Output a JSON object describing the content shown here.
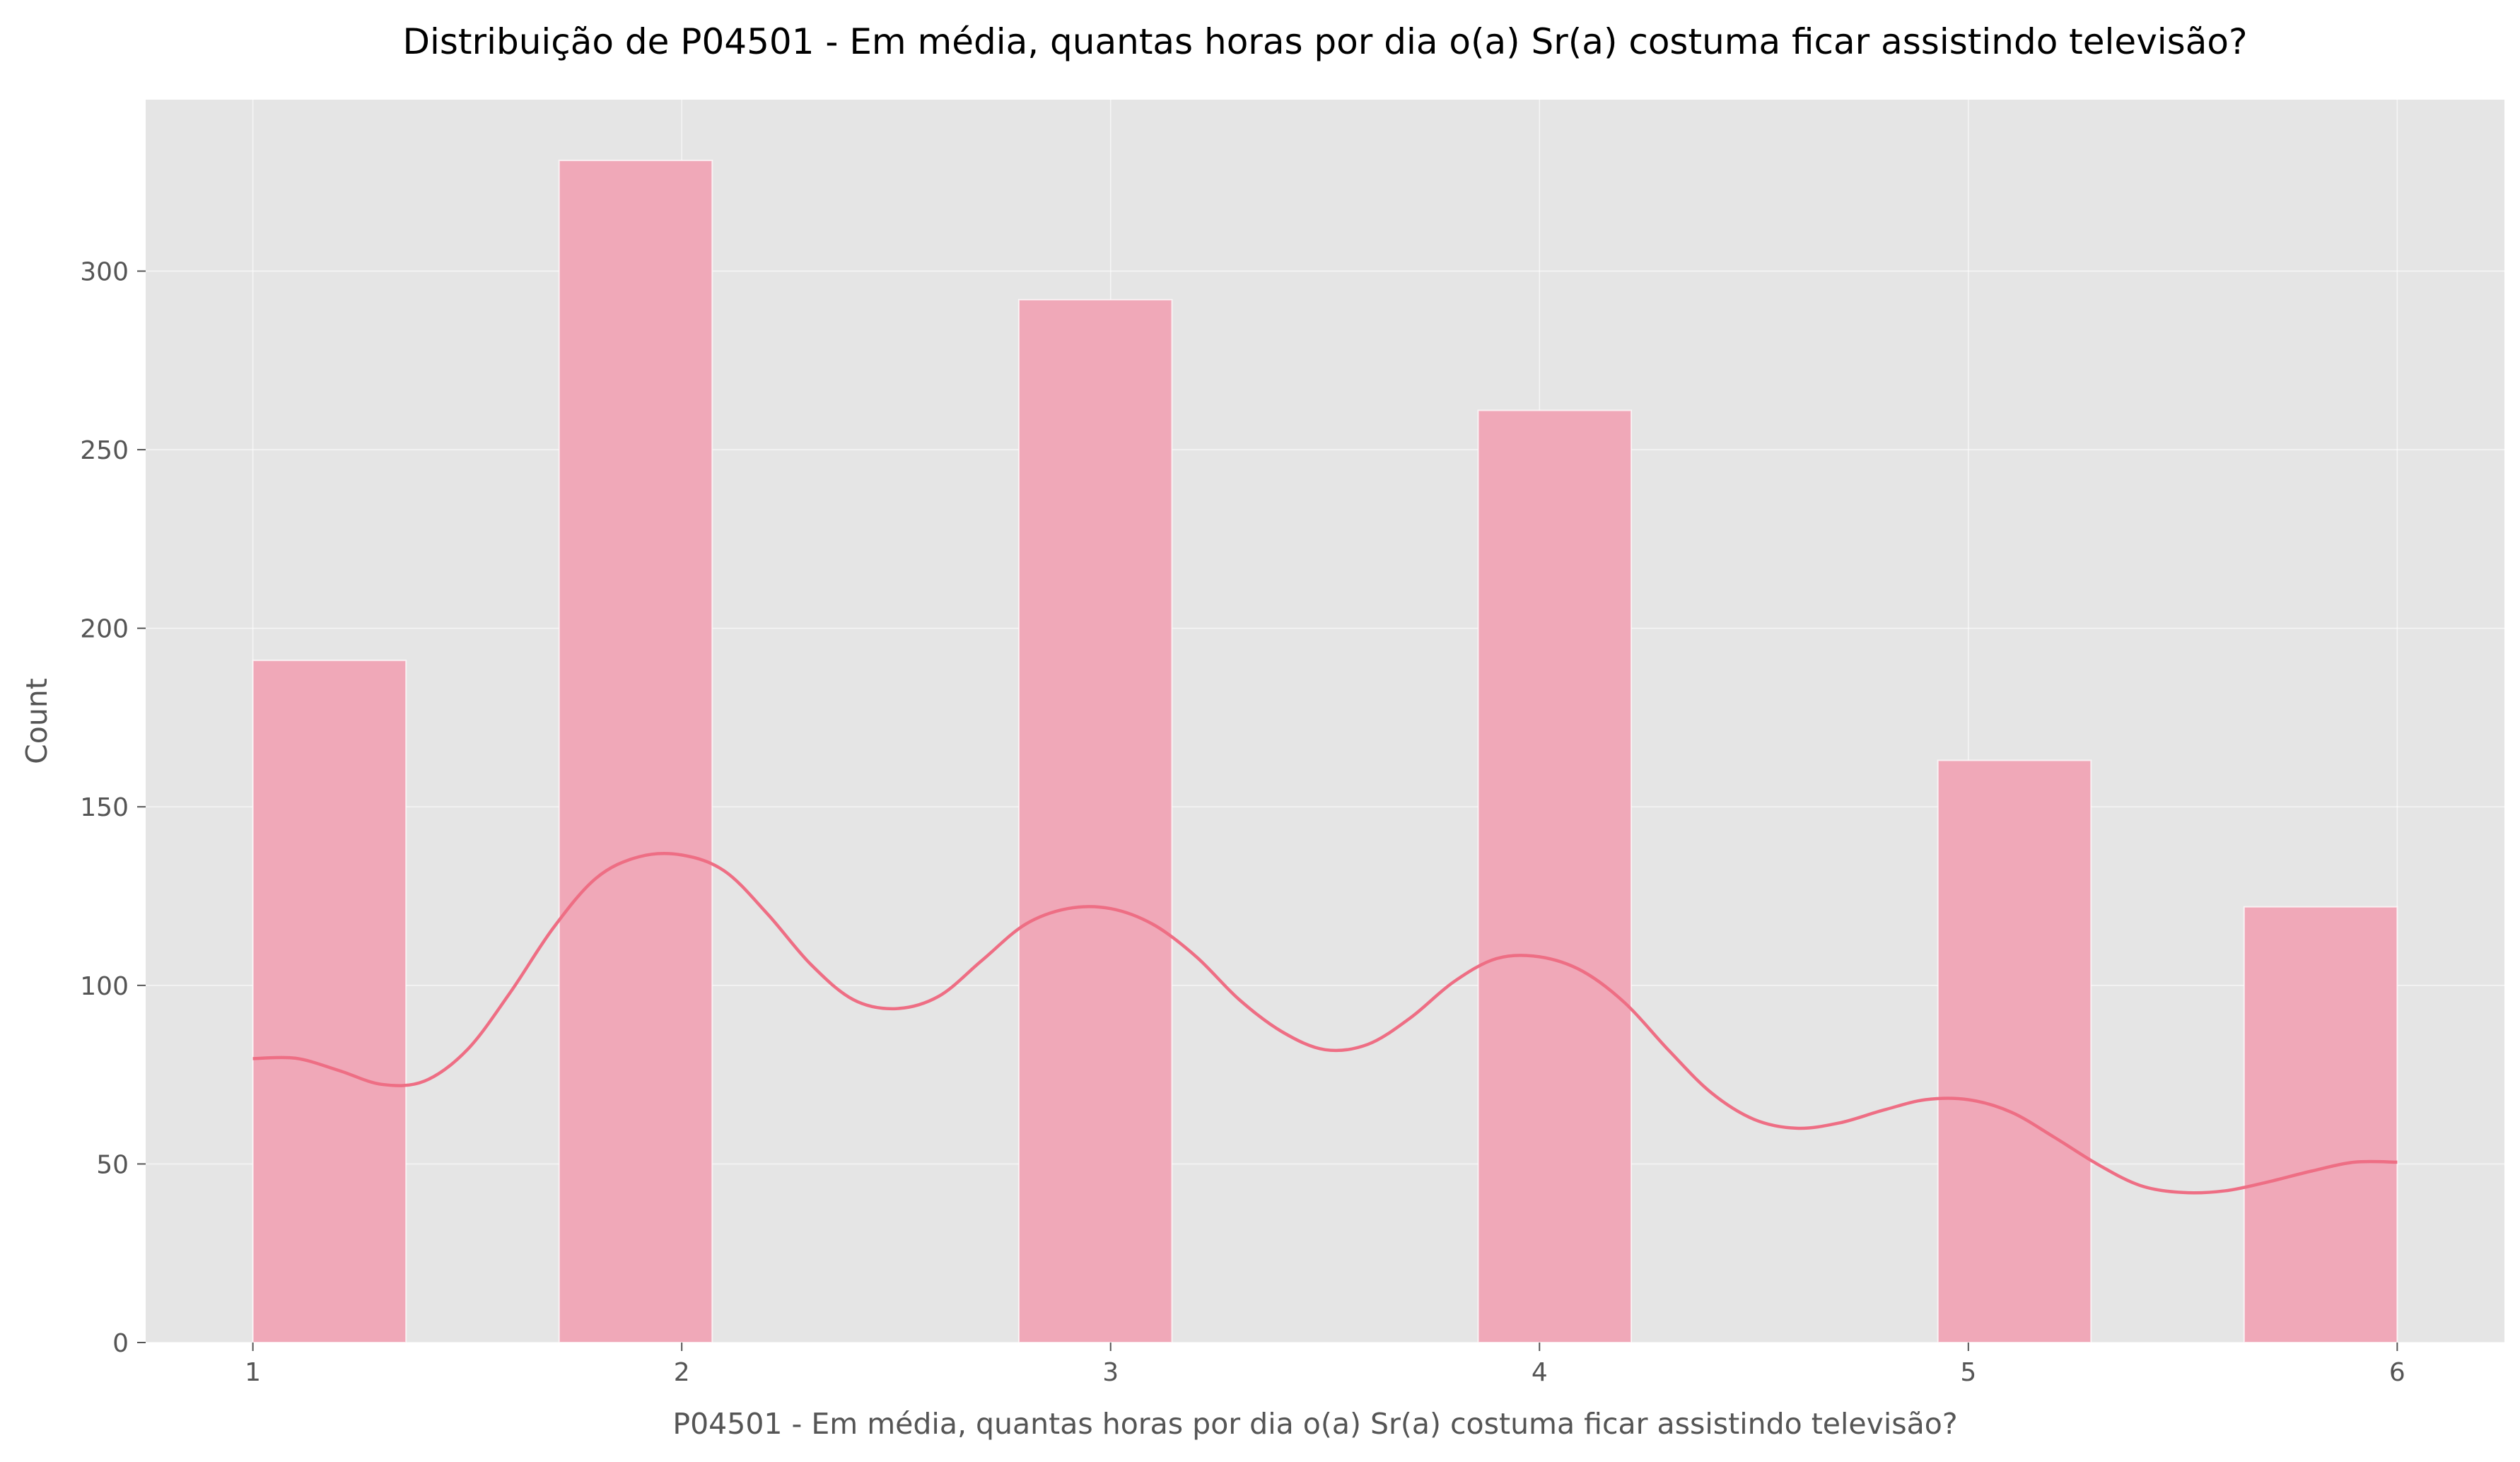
{
  "chart_data": {
    "type": "histogram",
    "title": "Distribuição de P04501 - Em média, quantas horas por dia o(a) Sr(a) costuma ficar assistindo televisão?",
    "xlabel": "P04501 - Em média, quantas horas por dia o(a) Sr(a) costuma ficar assistindo televisão?",
    "ylabel": "Count",
    "xlim": [
      0.75,
      6.25
    ],
    "ylim": [
      0,
      348
    ],
    "x_ticks": [
      1,
      2,
      3,
      4,
      5,
      6
    ],
    "y_ticks": [
      0,
      50,
      100,
      150,
      200,
      250,
      300
    ],
    "grid": true,
    "bar_color": "#f0a8b8",
    "kde_color": "#ee6e84",
    "background_color": "#e5e5e5",
    "bins": [
      {
        "start": 1.0,
        "end": 1.357,
        "count": 191
      },
      {
        "start": 1.714,
        "end": 2.071,
        "count": 331
      },
      {
        "start": 2.786,
        "end": 3.143,
        "count": 292
      },
      {
        "start": 3.857,
        "end": 4.214,
        "count": 261
      },
      {
        "start": 4.929,
        "end": 5.286,
        "count": 163
      },
      {
        "start": 5.643,
        "end": 6.0,
        "count": 122
      }
    ],
    "kde": {
      "x": [
        1.0,
        1.1,
        1.2,
        1.3,
        1.4,
        1.5,
        1.6,
        1.7,
        1.8,
        1.9,
        2.0,
        2.1,
        2.2,
        2.3,
        2.4,
        2.5,
        2.6,
        2.7,
        2.8,
        2.9,
        3.0,
        3.1,
        3.2,
        3.3,
        3.4,
        3.5,
        3.6,
        3.7,
        3.8,
        3.9,
        4.0,
        4.1,
        4.2,
        4.3,
        4.4,
        4.5,
        4.6,
        4.7,
        4.8,
        4.9,
        5.0,
        5.1,
        5.2,
        5.3,
        5.4,
        5.5,
        5.6,
        5.7,
        5.8,
        5.9,
        6.0
      ],
      "y": [
        79.5,
        79.6,
        76.2,
        72.3,
        73.2,
        82,
        98,
        116,
        130,
        136,
        136.5,
        132,
        120,
        106,
        96,
        93.5,
        97,
        107,
        117,
        121.5,
        121.5,
        117,
        108,
        96,
        87,
        82,
        83.5,
        91,
        101,
        107.5,
        108,
        104,
        95,
        82,
        70,
        62.5,
        60,
        61.5,
        65,
        68,
        68,
        64.5,
        57.5,
        50,
        44,
        42,
        42.5,
        45,
        48,
        50.5,
        50.5
      ]
    }
  }
}
